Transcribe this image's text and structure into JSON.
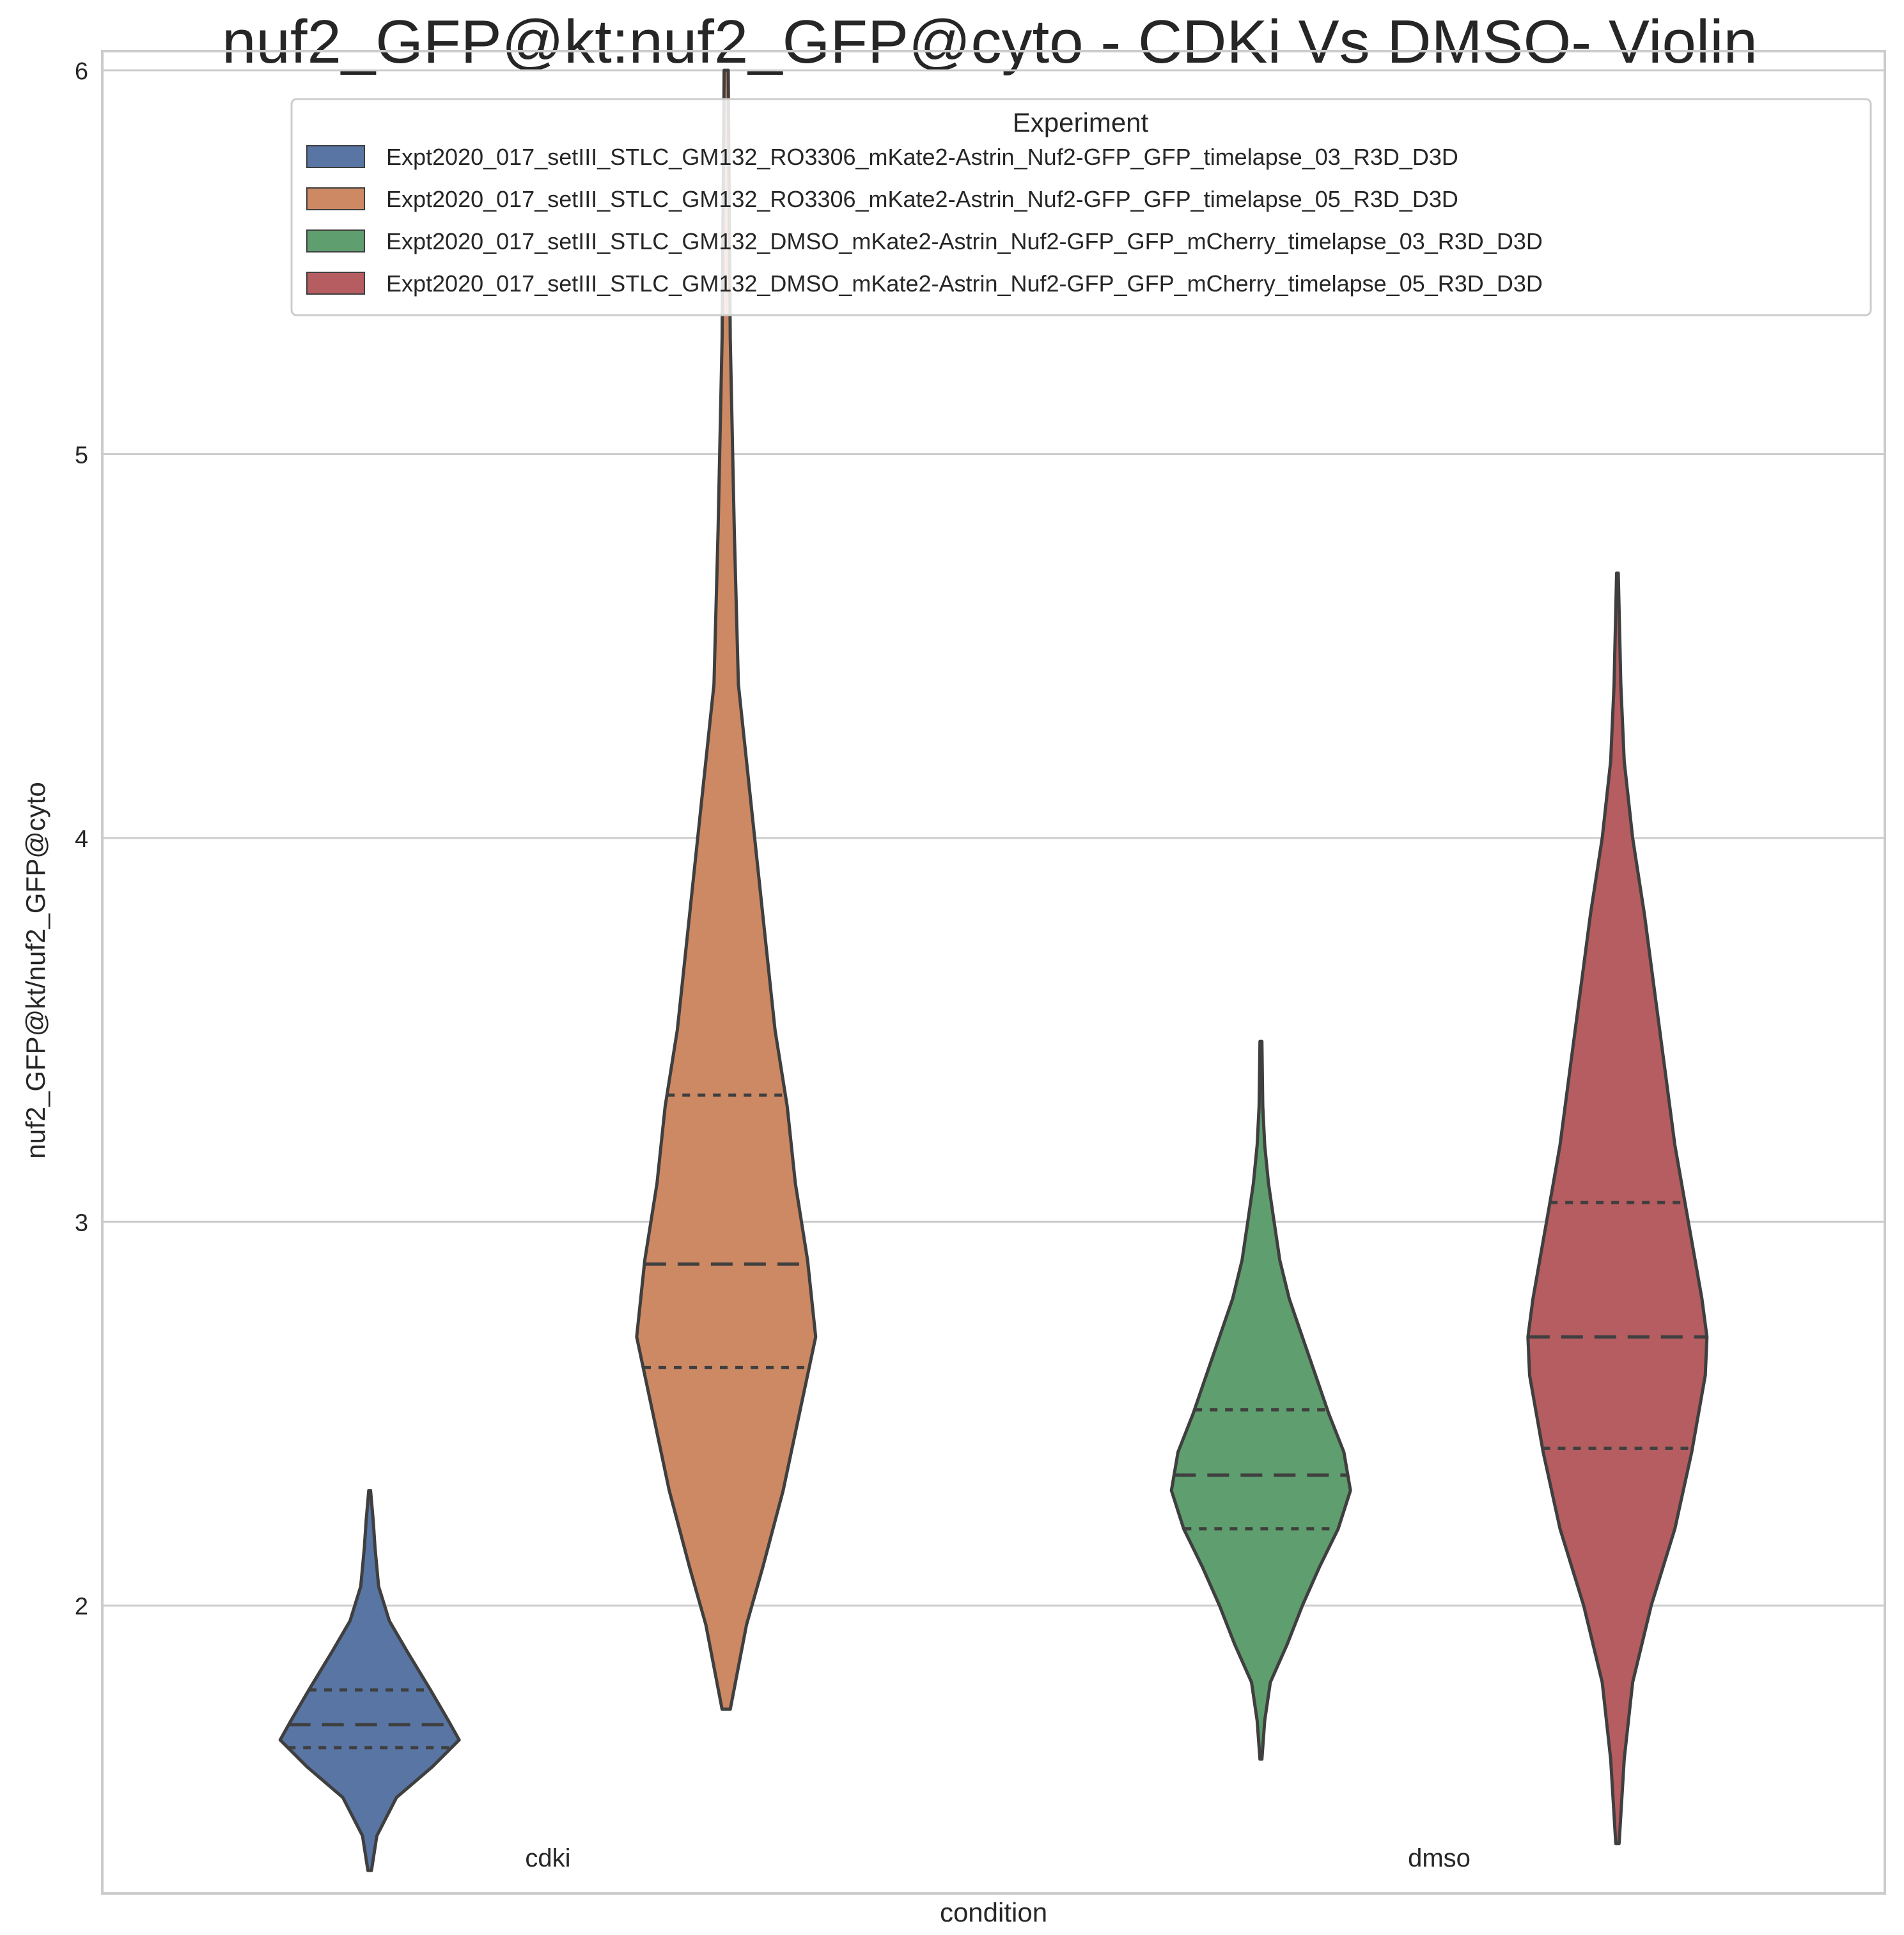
{
  "chart_data": {
    "type": "violin",
    "title": "nuf2_GFP@kt:nuf2_GFP@cyto - CDKi Vs DMSO- Violin",
    "xlabel": "condition",
    "ylabel": "nuf2_GFP@kt/nuf2_GFP@cyto",
    "categories": [
      "cdki",
      "dmso"
    ],
    "ylim": [
      1.25,
      6.05
    ],
    "yticks": [
      2,
      3,
      4,
      5,
      6
    ],
    "grid": "horizontal",
    "legend": {
      "title": "Experiment",
      "placement": "top-right"
    },
    "series": [
      {
        "name": "Expt2020_017_setIII_STLC_GM132_RO3306_mKate2-Astrin_Nuf2-GFP_GFP_timelapse_03_R3D_D3D",
        "color": "#5875a4",
        "category": "cdki",
        "min": 1.31,
        "max": 2.3,
        "q1": 1.63,
        "median": 1.69,
        "q3": 1.78,
        "density": [
          [
            1.31,
            0.02
          ],
          [
            1.4,
            0.08
          ],
          [
            1.5,
            0.3
          ],
          [
            1.58,
            0.7
          ],
          [
            1.65,
            1.0
          ],
          [
            1.7,
            0.88
          ],
          [
            1.78,
            0.68
          ],
          [
            1.88,
            0.42
          ],
          [
            1.96,
            0.22
          ],
          [
            2.05,
            0.1
          ],
          [
            2.15,
            0.06
          ],
          [
            2.22,
            0.04
          ],
          [
            2.3,
            0.01
          ]
        ]
      },
      {
        "name": "Expt2020_017_setIII_STLC_GM132_RO3306_mKate2-Astrin_Nuf2-GFP_GFP_timelapse_05_R3D_D3D",
        "color": "#cc8963",
        "category": "cdki",
        "min": 1.73,
        "max": 6.0,
        "q1": 2.62,
        "median": 2.89,
        "q3": 3.33,
        "density": [
          [
            1.73,
            0.01
          ],
          [
            1.95,
            0.05
          ],
          [
            2.1,
            0.09
          ],
          [
            2.3,
            0.14
          ],
          [
            2.5,
            0.18
          ],
          [
            2.7,
            0.22
          ],
          [
            2.9,
            0.2
          ],
          [
            3.1,
            0.17
          ],
          [
            3.3,
            0.15
          ],
          [
            3.5,
            0.12
          ],
          [
            3.7,
            0.1
          ],
          [
            3.9,
            0.08
          ],
          [
            4.1,
            0.06
          ],
          [
            4.4,
            0.03
          ],
          [
            4.8,
            0.02
          ],
          [
            5.3,
            0.01
          ],
          [
            6.0,
            0.005
          ]
        ]
      },
      {
        "name": "Expt2020_017_setIII_STLC_GM132_DMSO_mKate2-Astrin_Nuf2-GFP_GFP_mCherry_timelapse_03_R3D_D3D",
        "color": "#5f9e6e",
        "category": "dmso",
        "min": 1.6,
        "max": 3.47,
        "q1": 2.2,
        "median": 2.34,
        "q3": 2.51,
        "density": [
          [
            1.6,
            0.01
          ],
          [
            1.7,
            0.04
          ],
          [
            1.8,
            0.1
          ],
          [
            1.9,
            0.28
          ],
          [
            2.0,
            0.44
          ],
          [
            2.1,
            0.62
          ],
          [
            2.2,
            0.82
          ],
          [
            2.3,
            0.95
          ],
          [
            2.4,
            0.88
          ],
          [
            2.5,
            0.72
          ],
          [
            2.6,
            0.58
          ],
          [
            2.7,
            0.44
          ],
          [
            2.8,
            0.3
          ],
          [
            2.9,
            0.2
          ],
          [
            3.0,
            0.14
          ],
          [
            3.1,
            0.08
          ],
          [
            3.2,
            0.04
          ],
          [
            3.3,
            0.02
          ],
          [
            3.47,
            0.01
          ]
        ]
      },
      {
        "name": "Expt2020_017_setIII_STLC_GM132_DMSO_mKate2-Astrin_Nuf2-GFP_GFP_mCherry_timelapse_05_R3D_D3D",
        "color": "#b55d60",
        "category": "dmso",
        "min": 1.38,
        "max": 4.69,
        "q1": 2.41,
        "median": 2.7,
        "q3": 3.05,
        "density": [
          [
            1.38,
            0.01
          ],
          [
            1.6,
            0.04
          ],
          [
            1.8,
            0.09
          ],
          [
            2.0,
            0.2
          ],
          [
            2.2,
            0.34
          ],
          [
            2.4,
            0.44
          ],
          [
            2.6,
            0.52
          ],
          [
            2.7,
            0.53
          ],
          [
            2.8,
            0.5
          ],
          [
            3.0,
            0.42
          ],
          [
            3.2,
            0.34
          ],
          [
            3.4,
            0.28
          ],
          [
            3.6,
            0.22
          ],
          [
            3.8,
            0.16
          ],
          [
            4.0,
            0.09
          ],
          [
            4.2,
            0.04
          ],
          [
            4.4,
            0.02
          ],
          [
            4.69,
            0.005
          ]
        ]
      }
    ]
  }
}
